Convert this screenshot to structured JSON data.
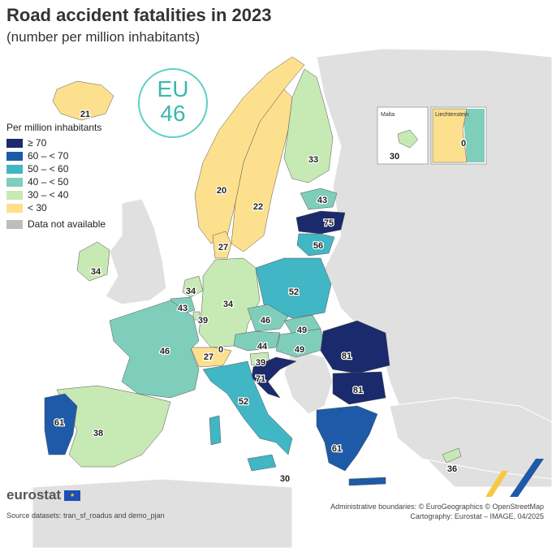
{
  "title": "Road accident fatalities in 2023",
  "subtitle": "(number per million inhabitants)",
  "legend": {
    "title": "Per million inhabitants",
    "classes": [
      {
        "label": "≥ 70",
        "color": "#1a2a6c"
      },
      {
        "label": "60 – < 70",
        "color": "#1e5aa8"
      },
      {
        "label": "50 – < 60",
        "color": "#41b6c4"
      },
      {
        "label": "40 – < 50",
        "color": "#7fcdbb"
      },
      {
        "label": "30 – < 40",
        "color": "#c7e9b4"
      },
      {
        "label": "< 30",
        "color": "#fde08e"
      }
    ],
    "na_label": "Data not available",
    "na_color": "#bdbdbd"
  },
  "eu": {
    "label": "EU",
    "value": "46"
  },
  "insets": {
    "malta": {
      "name": "Malta",
      "value": "30"
    },
    "liechtenstein": {
      "name": "Liechtenstein",
      "value": "0"
    }
  },
  "values": {
    "iceland": "21",
    "norway": "20",
    "sweden": "22",
    "finland": "33",
    "estonia": "43",
    "latvia": "75",
    "lithuania": "56",
    "denmark": "27",
    "ireland": "34",
    "netherlands": "34",
    "belgium": "43",
    "luxembourg": "39",
    "germany": "34",
    "poland": "52",
    "czechia": "46",
    "slovakia": "49",
    "austria": "44",
    "hungary": "49",
    "slovenia": "39",
    "croatia": "71",
    "switzerland": "27",
    "liechtenstein_main": "0",
    "france": "46",
    "italy": "52",
    "malta_main": "30",
    "spain": "38",
    "portugal": "61",
    "romania": "81",
    "bulgaria": "81",
    "greece": "61",
    "cyprus": "36"
  },
  "brand": "eurostat",
  "source": "Source datasets: tran_sf_roadus and demo_pjan",
  "credit_line1": "Administrative boundaries: © EuroGeographics © OpenStreetMap",
  "credit_line2": "Cartography: Eurostat – IMAGE, 04/2025"
}
